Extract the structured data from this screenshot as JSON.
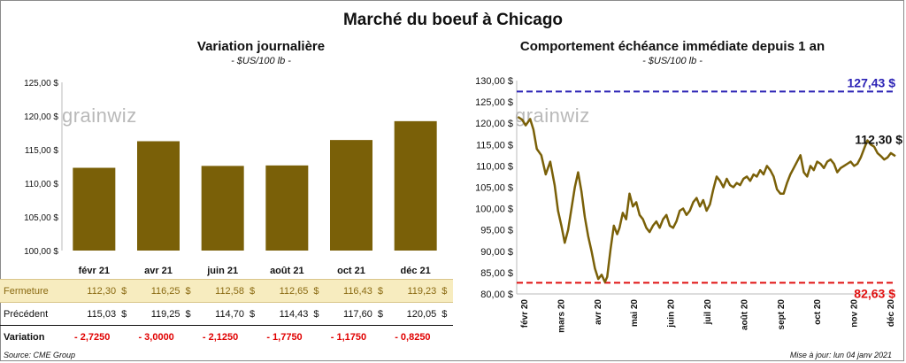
{
  "title": "Marché du boeuf à Chicago",
  "watermark": "grainwiz",
  "left_chart": {
    "title": "Variation journalière",
    "subtitle": "- $US/100 lb -"
  },
  "right_chart": {
    "title": "Comportement échéance immédiate depuis 1 an",
    "subtitle": "- $US/100 lb -"
  },
  "colors": {
    "bar": "#7a6008",
    "line": "#7a6008",
    "high_line": "#2b22b5",
    "low_line": "#e01010",
    "close_row_bg": "#f7ecbf"
  },
  "table": {
    "rows": [
      {
        "label": "Fermeture",
        "cells": [
          {
            "v": "112,30",
            "c": "$"
          },
          {
            "v": "116,25",
            "c": "$"
          },
          {
            "v": "112,58",
            "c": "$"
          },
          {
            "v": "112,65",
            "c": "$"
          },
          {
            "v": "116,43",
            "c": "$"
          },
          {
            "v": "119,23",
            "c": "$"
          }
        ]
      },
      {
        "label": "Précédent",
        "cells": [
          {
            "v": "115,03",
            "c": "$"
          },
          {
            "v": "119,25",
            "c": "$"
          },
          {
            "v": "114,70",
            "c": "$"
          },
          {
            "v": "114,43",
            "c": "$"
          },
          {
            "v": "117,60",
            "c": "$"
          },
          {
            "v": "120,05",
            "c": "$"
          }
        ]
      },
      {
        "label": "Variation",
        "cells": [
          {
            "v": "- 2,7250",
            "c": ""
          },
          {
            "v": "- 3,0000",
            "c": ""
          },
          {
            "v": "- 2,1250",
            "c": ""
          },
          {
            "v": "- 1,7750",
            "c": ""
          },
          {
            "v": "- 1,1750",
            "c": ""
          },
          {
            "v": "- 0,8250",
            "c": ""
          }
        ]
      }
    ]
  },
  "footer": {
    "source": "Source: CME Group",
    "updated": "Mise à jour: lun 04 janv 2021"
  },
  "chart_data": [
    {
      "type": "bar",
      "categories": [
        "févr 21",
        "avr 21",
        "juin 21",
        "août 21",
        "oct 21",
        "déc 21"
      ],
      "values": [
        112.3,
        116.25,
        112.58,
        112.65,
        116.43,
        119.23
      ],
      "ylim": [
        100,
        125
      ],
      "yticks": [
        100,
        105,
        110,
        115,
        120,
        125
      ],
      "ytick_labels": [
        "100,00 $",
        "105,00 $",
        "110,00 $",
        "115,00 $",
        "120,00 $",
        "125,00 $"
      ],
      "grid": false,
      "legend": false
    },
    {
      "type": "line",
      "ylim": [
        80,
        130
      ],
      "yticks": [
        80,
        85,
        90,
        95,
        100,
        105,
        110,
        115,
        120,
        125,
        130
      ],
      "ytick_labels": [
        "80,00 $",
        "85,00 $",
        "90,00 $",
        "95,00 $",
        "100,00 $",
        "105,00 $",
        "110,00 $",
        "115,00 $",
        "120,00 $",
        "125,00 $",
        "130,00 $"
      ],
      "xtick_labels": [
        "févr 20",
        "mars 20",
        "avr 20",
        "mai 20",
        "juin 20",
        "juil 20",
        "août 20",
        "sept 20",
        "oct 20",
        "nov 20",
        "déc 20"
      ],
      "x_range": [
        "2020-01-31",
        "2021-01-04"
      ],
      "reference_lines": [
        {
          "name": "max",
          "value": 127.43,
          "label": "127,43 $",
          "style": "dashed"
        },
        {
          "name": "min",
          "value": 82.63,
          "label": "82,63 $",
          "style": "dashed"
        }
      ],
      "last_label": "112,30 $",
      "series": [
        {
          "x": [
            "2020-02-01",
            "2020-02-05",
            "2020-02-08",
            "2020-02-12",
            "2020-02-15",
            "2020-02-18",
            "2020-02-22",
            "2020-02-26",
            "2020-03-01",
            "2020-03-05",
            "2020-03-08",
            "2020-03-11",
            "2020-03-14",
            "2020-03-17",
            "2020-03-20",
            "2020-03-23",
            "2020-03-26",
            "2020-03-29",
            "2020-04-01",
            "2020-04-04",
            "2020-04-07",
            "2020-04-10",
            "2020-04-13",
            "2020-04-16",
            "2020-04-19",
            "2020-04-21",
            "2020-04-24",
            "2020-04-27",
            "2020-04-30",
            "2020-05-02",
            "2020-05-05",
            "2020-05-08",
            "2020-05-11",
            "2020-05-14",
            "2020-05-17",
            "2020-05-20",
            "2020-05-23",
            "2020-05-26",
            "2020-05-29",
            "2020-06-01",
            "2020-06-04",
            "2020-06-07",
            "2020-06-10",
            "2020-06-13",
            "2020-06-16",
            "2020-06-19",
            "2020-06-22",
            "2020-06-25",
            "2020-06-28",
            "2020-07-01",
            "2020-07-04",
            "2020-07-07",
            "2020-07-10",
            "2020-07-13",
            "2020-07-16",
            "2020-07-19",
            "2020-07-22",
            "2020-07-25",
            "2020-07-28",
            "2020-07-31",
            "2020-08-03",
            "2020-08-06",
            "2020-08-09",
            "2020-08-12",
            "2020-08-15",
            "2020-08-18",
            "2020-08-21",
            "2020-08-24",
            "2020-08-27",
            "2020-08-30",
            "2020-09-02",
            "2020-09-05",
            "2020-09-08",
            "2020-09-11",
            "2020-09-14",
            "2020-09-17",
            "2020-09-20",
            "2020-09-23",
            "2020-09-26",
            "2020-09-29",
            "2020-10-02",
            "2020-10-05",
            "2020-10-08",
            "2020-10-11",
            "2020-10-14",
            "2020-10-17",
            "2020-10-20",
            "2020-10-23",
            "2020-10-26",
            "2020-10-29",
            "2020-11-01",
            "2020-11-04",
            "2020-11-07",
            "2020-11-10",
            "2020-11-13",
            "2020-11-16",
            "2020-11-19",
            "2020-11-22",
            "2020-11-25",
            "2020-11-28",
            "2020-12-01",
            "2020-12-04",
            "2020-12-07",
            "2020-12-10",
            "2020-12-13",
            "2020-12-16",
            "2020-12-19",
            "2020-12-22",
            "2020-12-25",
            "2020-12-28",
            "2020-12-31",
            "2021-01-04"
          ],
          "y": [
            121.5,
            120.8,
            119.5,
            121.0,
            118.5,
            114.0,
            112.5,
            108.0,
            111.0,
            105.5,
            99.5,
            96.0,
            92.0,
            95.0,
            100.0,
            105.0,
            108.5,
            104.0,
            98.0,
            93.5,
            90.0,
            86.0,
            83.5,
            84.5,
            82.8,
            84.0,
            90.5,
            96.0,
            94.0,
            95.5,
            99.0,
            97.5,
            103.5,
            100.5,
            101.5,
            98.5,
            97.5,
            95.5,
            94.5,
            96.0,
            97.0,
            95.5,
            97.5,
            98.5,
            96.0,
            95.5,
            97.0,
            99.5,
            100.0,
            98.5,
            99.5,
            101.5,
            102.5,
            100.5,
            102.0,
            99.5,
            101.0,
            104.5,
            107.5,
            106.5,
            105.0,
            107.0,
            105.5,
            105.0,
            106.0,
            105.5,
            107.0,
            107.5,
            106.5,
            108.0,
            107.5,
            109.0,
            108.0,
            110.0,
            109.0,
            107.5,
            104.5,
            103.5,
            103.5,
            106.0,
            108.0,
            109.5,
            111.0,
            112.5,
            108.5,
            107.5,
            110.0,
            109.0,
            111.0,
            110.5,
            109.5,
            111.0,
            111.5,
            110.5,
            108.5,
            109.5,
            110.0,
            110.5,
            111.0,
            110.0,
            110.5,
            112.0,
            114.0,
            116.0,
            115.0,
            114.5,
            113.0,
            112.3,
            111.5,
            112.0,
            113.0,
            112.3
          ]
        }
      ]
    }
  ]
}
